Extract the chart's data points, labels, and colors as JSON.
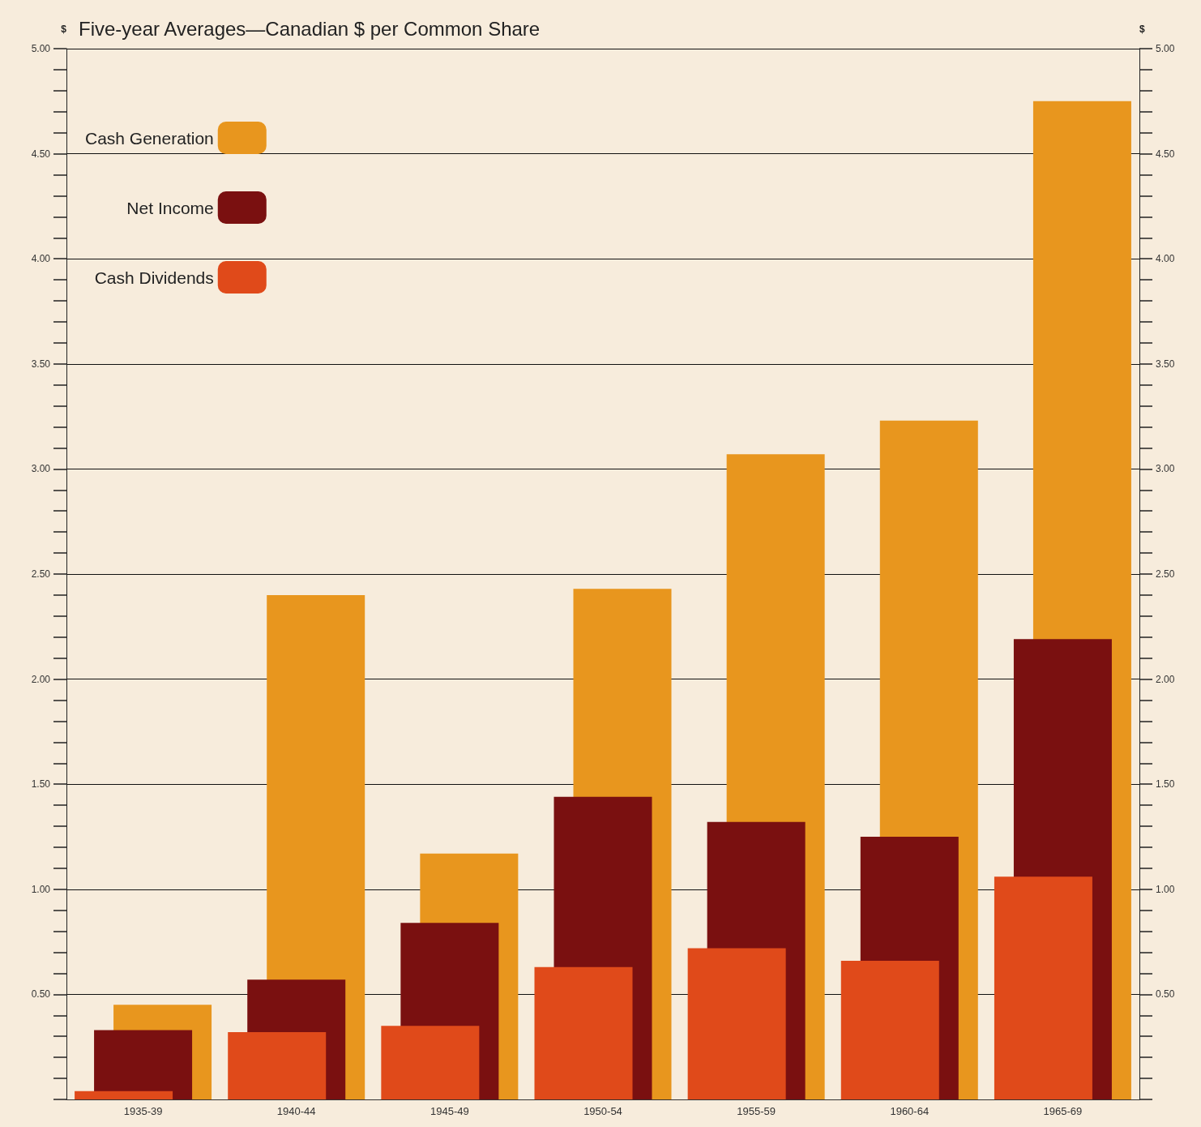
{
  "chart_data": {
    "type": "bar",
    "title": "Five-year Averages—Canadian $ per Common Share",
    "ylabel": "$",
    "y2label": "$",
    "categories": [
      "1935-39",
      "1940-44",
      "1945-49",
      "1950-54",
      "1955-59",
      "1960-64",
      "1965-69"
    ],
    "series": [
      {
        "name": "Cash Generation",
        "color": "#e8961e",
        "values": [
          0.45,
          2.4,
          1.17,
          2.43,
          3.07,
          3.23,
          4.75
        ]
      },
      {
        "name": "Net Income",
        "color": "#7a1010",
        "values": [
          0.33,
          0.57,
          0.84,
          1.44,
          1.32,
          1.25,
          2.19
        ]
      },
      {
        "name": "Cash Dividends",
        "color": "#e04a1a",
        "values": [
          0.04,
          0.32,
          0.35,
          0.63,
          0.72,
          0.66,
          1.06
        ]
      }
    ],
    "ylim": [
      0,
      5
    ],
    "yticks": [
      {
        "value": 0,
        "label": null
      },
      {
        "value": 0.1,
        "label": null
      },
      {
        "value": 0.2,
        "label": null
      },
      {
        "value": 0.3,
        "label": null
      },
      {
        "value": 0.4,
        "label": null
      },
      {
        "value": 0.5,
        "label": "0.50"
      },
      {
        "value": 0.6,
        "label": null
      },
      {
        "value": 0.7,
        "label": null
      },
      {
        "value": 0.8,
        "label": null
      },
      {
        "value": 0.9,
        "label": null
      },
      {
        "value": 1,
        "label": "1.00"
      },
      {
        "value": 1.1,
        "label": null
      },
      {
        "value": 1.2,
        "label": null
      },
      {
        "value": 1.3,
        "label": null
      },
      {
        "value": 1.4,
        "label": null
      },
      {
        "value": 1.5,
        "label": "1.50"
      },
      {
        "value": 1.6,
        "label": null
      },
      {
        "value": 1.7,
        "label": null
      },
      {
        "value": 1.8,
        "label": null
      },
      {
        "value": 1.9,
        "label": null
      },
      {
        "value": 2,
        "label": "2.00"
      },
      {
        "value": 2.1,
        "label": null
      },
      {
        "value": 2.2,
        "label": null
      },
      {
        "value": 2.3,
        "label": null
      },
      {
        "value": 2.4,
        "label": null
      },
      {
        "value": 2.5,
        "label": "2.50"
      },
      {
        "value": 2.6,
        "label": null
      },
      {
        "value": 2.7,
        "label": null
      },
      {
        "value": 2.8,
        "label": null
      },
      {
        "value": 2.9,
        "label": null
      },
      {
        "value": 3,
        "label": "3.00"
      },
      {
        "value": 3.1,
        "label": null
      },
      {
        "value": 3.2,
        "label": null
      },
      {
        "value": 3.3,
        "label": null
      },
      {
        "value": 3.4,
        "label": null
      },
      {
        "value": 3.5,
        "label": "3.50"
      },
      {
        "value": 3.6,
        "label": null
      },
      {
        "value": 3.7,
        "label": null
      },
      {
        "value": 3.8,
        "label": null
      },
      {
        "value": 3.9,
        "label": null
      },
      {
        "value": 4,
        "label": "4.00"
      },
      {
        "value": 4.1,
        "label": null
      },
      {
        "value": 4.2,
        "label": null
      },
      {
        "value": 4.3,
        "label": null
      },
      {
        "value": 4.4,
        "label": null
      },
      {
        "value": 4.5,
        "label": "4.50"
      },
      {
        "value": 4.6,
        "label": null
      },
      {
        "value": 4.7,
        "label": null
      },
      {
        "value": 4.8,
        "label": null
      },
      {
        "value": 4.9,
        "label": null
      },
      {
        "value": 5,
        "label": "5.00"
      }
    ],
    "y2lim": [
      0,
      5
    ],
    "y2ticks": [
      {
        "value": 0,
        "label": null
      },
      {
        "value": 0.1,
        "label": null
      },
      {
        "value": 0.2,
        "label": null
      },
      {
        "value": 0.3,
        "label": null
      },
      {
        "value": 0.4,
        "label": null
      },
      {
        "value": 0.5,
        "label": "0.50"
      },
      {
        "value": 0.6,
        "label": null
      },
      {
        "value": 0.7,
        "label": null
      },
      {
        "value": 0.8,
        "label": null
      },
      {
        "value": 0.9,
        "label": null
      },
      {
        "value": 1,
        "label": "1.00"
      },
      {
        "value": 1.1,
        "label": null
      },
      {
        "value": 1.2,
        "label": null
      },
      {
        "value": 1.3,
        "label": null
      },
      {
        "value": 1.4,
        "label": null
      },
      {
        "value": 1.5,
        "label": "1.50"
      },
      {
        "value": 1.6,
        "label": null
      },
      {
        "value": 1.7,
        "label": null
      },
      {
        "value": 1.8,
        "label": null
      },
      {
        "value": 1.9,
        "label": null
      },
      {
        "value": 2,
        "label": "2.00"
      },
      {
        "value": 2.1,
        "label": null
      },
      {
        "value": 2.2,
        "label": null
      },
      {
        "value": 2.3,
        "label": null
      },
      {
        "value": 2.4,
        "label": null
      },
      {
        "value": 2.5,
        "label": "2.50"
      },
      {
        "value": 2.6,
        "label": null
      },
      {
        "value": 2.7,
        "label": null
      },
      {
        "value": 2.8,
        "label": null
      },
      {
        "value": 2.9,
        "label": null
      },
      {
        "value": 3,
        "label": "3.00"
      },
      {
        "value": 3.1,
        "label": null
      },
      {
        "value": 3.2,
        "label": null
      },
      {
        "value": 3.3,
        "label": null
      },
      {
        "value": 3.4,
        "label": null
      },
      {
        "value": 3.5,
        "label": "3.50"
      },
      {
        "value": 3.6,
        "label": null
      },
      {
        "value": 3.7,
        "label": null
      },
      {
        "value": 3.8,
        "label": null
      },
      {
        "value": 3.9,
        "label": null
      },
      {
        "value": 4,
        "label": "4.00"
      },
      {
        "value": 4.1,
        "label": null
      },
      {
        "value": 4.2,
        "label": null
      },
      {
        "value": 4.3,
        "label": null
      },
      {
        "value": 4.4,
        "label": null
      },
      {
        "value": 4.5,
        "label": "4.50"
      },
      {
        "value": 4.6,
        "label": null
      },
      {
        "value": 4.7,
        "label": null
      },
      {
        "value": 4.8,
        "label": null
      },
      {
        "value": 4.9,
        "label": null
      },
      {
        "value": 5,
        "label": "5.00"
      }
    ],
    "grid": "y",
    "legend": "top left"
  }
}
